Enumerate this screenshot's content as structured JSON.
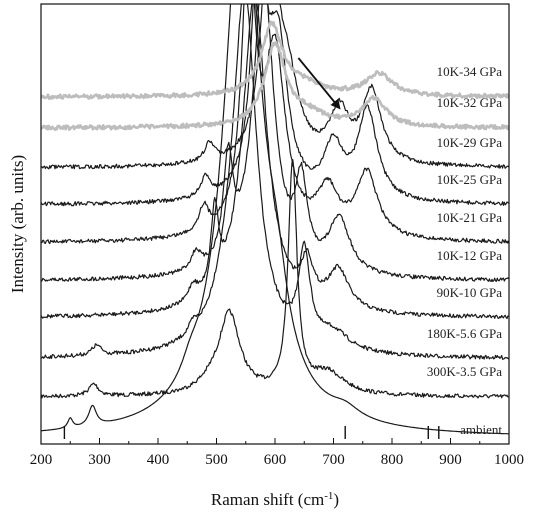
{
  "chart_data": {
    "type": "line",
    "xlabel": "Raman shift (cm",
    "xlabel_sup": "-1",
    "xlabel_close": ")",
    "ylabel": "Intensity (arb. units)",
    "xlim": [
      200,
      1000
    ],
    "x_ticks": [
      200,
      300,
      400,
      500,
      600,
      700,
      800,
      900,
      1000
    ],
    "colors": {
      "dark": "#1a1a1a",
      "gray": "#bdbdbd"
    },
    "series": [
      {
        "name": "ambient",
        "color": "dark",
        "base": 438,
        "peaks": [
          [
            288,
            8,
            20
          ],
          [
            250,
            5,
            10
          ],
          [
            455,
            18,
            14
          ],
          [
            545,
            38,
            560
          ],
          [
            603,
            22,
            60
          ],
          [
            720,
            30,
            10
          ]
        ],
        "ticks": [
          240,
          720,
          862,
          880
        ]
      },
      {
        "name": "300K-3.5 GPa",
        "color": "dark",
        "base": 397,
        "peaks": [
          [
            290,
            10,
            12
          ],
          [
            490,
            28,
            8
          ],
          [
            522,
            22,
            80
          ],
          [
            630,
            9,
            230
          ],
          [
            690,
            35,
            22
          ]
        ]
      },
      {
        "name": "180K-5.6 GPa",
        "color": "dark",
        "base": 359,
        "peaks": [
          [
            295,
            10,
            10
          ],
          [
            460,
            10,
            10
          ],
          [
            515,
            26,
            20
          ],
          [
            548,
            25,
            360
          ],
          [
            650,
            12,
            90
          ],
          [
            700,
            32,
            18
          ]
        ]
      },
      {
        "name": "90K-10 GPa",
        "color": "dark",
        "base": 318,
        "peaks": [
          [
            460,
            10,
            16
          ],
          [
            497,
            8,
            80
          ],
          [
            565,
            25,
            320
          ],
          [
            655,
            12,
            40
          ],
          [
            708,
            22,
            40
          ]
        ]
      },
      {
        "name": "10K-12 GPa",
        "color": "dark",
        "base": 281,
        "peaks": [
          [
            465,
            10,
            18
          ],
          [
            520,
            10,
            100
          ],
          [
            580,
            22,
            300
          ],
          [
            645,
            12,
            80
          ],
          [
            710,
            22,
            55
          ]
        ]
      },
      {
        "name": "10K-21 GPa",
        "color": "dark",
        "base": 243,
        "peaks": [
          [
            478,
            10,
            25
          ],
          [
            555,
            14,
            280
          ],
          [
            600,
            22,
            180
          ],
          [
            690,
            22,
            45
          ],
          [
            757,
            22,
            65
          ]
        ]
      },
      {
        "name": "10K-25 GPa",
        "color": "dark",
        "base": 205,
        "peaks": [
          [
            482,
            10,
            20
          ],
          [
            572,
            14,
            250
          ],
          [
            605,
            20,
            150
          ],
          [
            700,
            20,
            52
          ],
          [
            758,
            20,
            90
          ]
        ]
      },
      {
        "name": "10K-29 GPa",
        "color": "dark",
        "base": 168,
        "peaks": [
          [
            488,
            10,
            18
          ],
          [
            590,
            16,
            220
          ],
          [
            620,
            25,
            80
          ],
          [
            710,
            20,
            50
          ],
          [
            765,
            20,
            72
          ]
        ]
      },
      {
        "name": "10K-32 GPa",
        "color": "gray",
        "base": 128,
        "peaks": [
          [
            600,
            22,
            80
          ],
          [
            655,
            40,
            12
          ],
          [
            770,
            24,
            28
          ]
        ]
      },
      {
        "name": "10K-34 GPa",
        "color": "gray",
        "base": 97,
        "peaks": [
          [
            595,
            22,
            70
          ],
          [
            650,
            40,
            10
          ],
          [
            778,
            28,
            22
          ]
        ]
      }
    ],
    "arrow": {
      "from_x": 640,
      "to_x": 710
    }
  }
}
